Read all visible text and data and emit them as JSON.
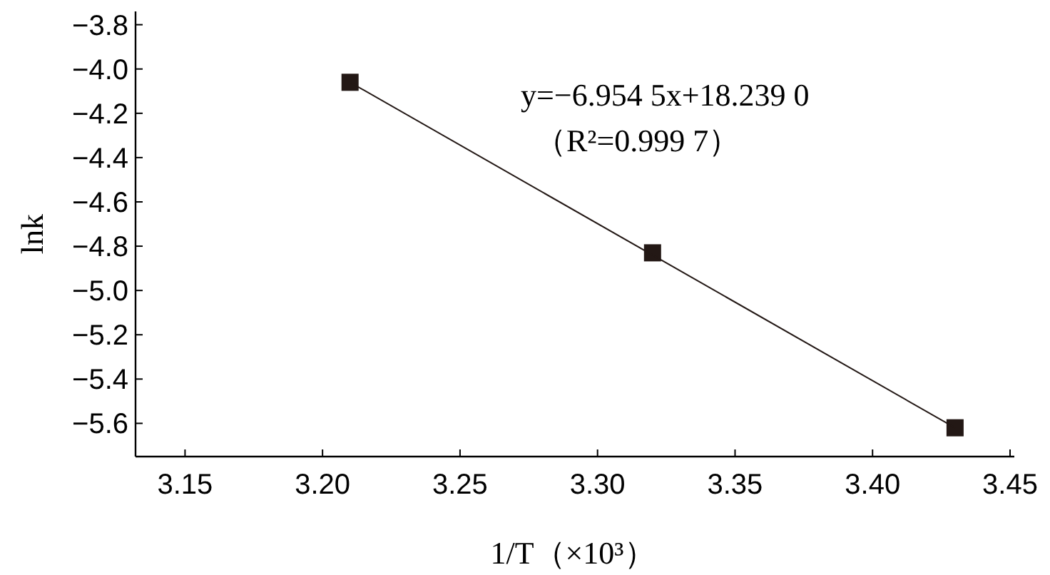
{
  "chart_data": {
    "type": "scatter",
    "xlabel": "1/T（×10³）",
    "ylabel": "lnk",
    "xlim": [
      3.132,
      3.45
    ],
    "ylim": [
      -5.75,
      -3.74
    ],
    "xticks": [
      3.15,
      {
        "value": 3.2,
        "label": "3.20"
      },
      3.25,
      {
        "value": 3.3,
        "label": "3.30"
      },
      3.35,
      {
        "value": 3.4,
        "label": "3.40"
      },
      3.45
    ],
    "yticks": [
      -3.8,
      {
        "value": -4.0,
        "label": "−4.0"
      },
      -4.2,
      -4.4,
      -4.6,
      -4.8,
      {
        "value": -5.0,
        "label": "−5.0"
      },
      -5.2,
      -5.4,
      -5.6
    ],
    "series": [
      {
        "type": "scatter",
        "marker": "square",
        "color": "#231815",
        "x": [
          3.21,
          3.32,
          3.43
        ],
        "values": [
          -4.06,
          -4.83,
          -5.62
        ]
      },
      {
        "type": "line",
        "color": "#231815",
        "x": [
          3.21,
          3.43
        ],
        "values": [
          -4.06,
          -5.62
        ]
      }
    ],
    "annotations": [
      "y=−6.954 5x+18.239 0",
      "（R²=0.999 7）"
    ]
  }
}
